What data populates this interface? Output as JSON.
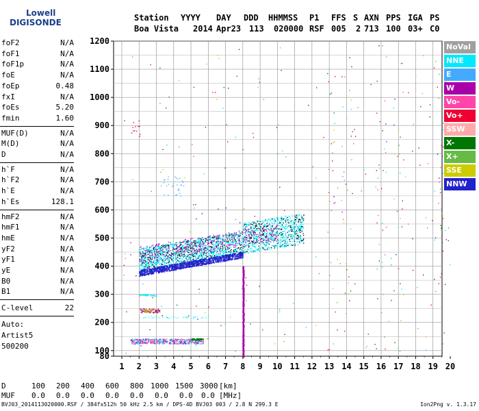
{
  "logo": {
    "line1": "Lowell",
    "line2": "DIGISONDE"
  },
  "header": {
    "labels": [
      "Station",
      "YYYY",
      "DAY",
      "DDD",
      "HHMMSS",
      "P1",
      "FFS",
      "S",
      "AXN",
      "PPS",
      "IGA",
      "PS"
    ],
    "values": [
      "Boa Vista",
      "2014",
      "Apr23",
      "113",
      "020000",
      "RSF",
      "005",
      "2",
      "713",
      "100",
      "03+",
      "C0"
    ]
  },
  "params": {
    "group1": [
      {
        "name": "foF2",
        "value": "N/A"
      },
      {
        "name": "foF1",
        "value": "N/A"
      },
      {
        "name": "foF1p",
        "value": "N/A"
      },
      {
        "name": "foE",
        "value": "N/A"
      },
      {
        "name": "foEp",
        "value": "0.48"
      },
      {
        "name": "fxI",
        "value": "N/A"
      },
      {
        "name": "foEs",
        "value": "5.20"
      },
      {
        "name": "fmin",
        "value": "1.60"
      }
    ],
    "group2": [
      {
        "name": "MUF(D)",
        "value": "N/A"
      },
      {
        "name": "M(D)",
        "value": "N/A"
      },
      {
        "name": "D",
        "value": "N/A"
      }
    ],
    "group3": [
      {
        "name": "h`F",
        "value": "N/A"
      },
      {
        "name": "h`F2",
        "value": "N/A"
      },
      {
        "name": "h`E",
        "value": "N/A"
      },
      {
        "name": "h`Es",
        "value": "128.1"
      }
    ],
    "group4": [
      {
        "name": "hmF2",
        "value": "N/A"
      },
      {
        "name": "hmF1",
        "value": "N/A"
      },
      {
        "name": "hmE",
        "value": "N/A"
      },
      {
        "name": "yF2",
        "value": "N/A"
      },
      {
        "name": "yF1",
        "value": "N/A"
      },
      {
        "name": "yE",
        "value": "N/A"
      },
      {
        "name": "B0",
        "value": "N/A"
      },
      {
        "name": "B1",
        "value": "N/A"
      }
    ],
    "clevel": {
      "name": "C-level",
      "value": "22"
    },
    "auto": [
      "Auto:",
      "Artist5",
      "500200"
    ]
  },
  "legend": [
    {
      "label": "NoVal",
      "color": "#a0a0a0"
    },
    {
      "label": "NNE",
      "color": "#00e8ff"
    },
    {
      "label": "E",
      "color": "#44aaff"
    },
    {
      "label": "W",
      "color": "#aa00aa"
    },
    {
      "label": "Vo-",
      "color": "#ff44aa"
    },
    {
      "label": "Vo+",
      "color": "#ee0033"
    },
    {
      "label": "SSW",
      "color": "#ffaaaa"
    },
    {
      "label": "X-",
      "color": "#007700"
    },
    {
      "label": "X+",
      "color": "#66bb44"
    },
    {
      "label": "SSE",
      "color": "#cccc00"
    },
    {
      "label": "NNW",
      "color": "#2222cc"
    }
  ],
  "chart_data": {
    "type": "scatter",
    "title": "",
    "xlabel": "",
    "ylabel": "",
    "xlim": [
      1,
      20
    ],
    "ylim": [
      80,
      1200
    ],
    "x_ticks": [
      1,
      2,
      3,
      4,
      5,
      6,
      7,
      8,
      9,
      10,
      11,
      12,
      13,
      14,
      15,
      16,
      17,
      18,
      19,
      20
    ],
    "y_ticks": [
      100,
      200,
      300,
      400,
      500,
      600,
      700,
      800,
      900,
      1000,
      1100,
      1200
    ],
    "y_tick_labels_extra": [
      80
    ],
    "grid": true,
    "legend_placement": "right",
    "traces": [
      {
        "name": "NNW",
        "color": "#2222cc",
        "note_x": [
          2.0,
          8.0
        ],
        "y_start": [
          365,
          420
        ],
        "y_end": [
          395,
          445
        ]
      },
      {
        "name": "NNE",
        "color": "#00e8ff",
        "x": [
          2.0,
          11.5
        ],
        "y_low": 380,
        "y_high": 540
      },
      {
        "name": "W",
        "color": "#aa00aa",
        "x": [
          2.0,
          10.0
        ],
        "y_low": 400,
        "y_high": 470
      },
      {
        "name": "Es",
        "color": "#ff44aa",
        "x": [
          1.5,
          5.7
        ],
        "y": [
          125,
          145
        ]
      },
      {
        "name": "vertical-trace",
        "color": "#aa00aa",
        "x": 8.0,
        "y": [
          80,
          400
        ]
      }
    ]
  },
  "bottom": {
    "d_label": "D",
    "d_values": [
      "100",
      "200",
      "400",
      "600",
      "800",
      "1000",
      "1500",
      "3000",
      "[km]"
    ],
    "muf_label": "MUF",
    "muf_values": [
      "0.0",
      "0.0",
      "0.0",
      "0.0",
      "0.0",
      "0.0",
      "0.0",
      "0.0",
      "[MHz]"
    ]
  },
  "footer": "BVJ03_2014113020000.RSF / 384fx512h 50 kHz 2.5 km / DPS-4D BVJ03 003 / 2.8 N 299.3 E",
  "version": "Ion2Png v. 1.3.17"
}
